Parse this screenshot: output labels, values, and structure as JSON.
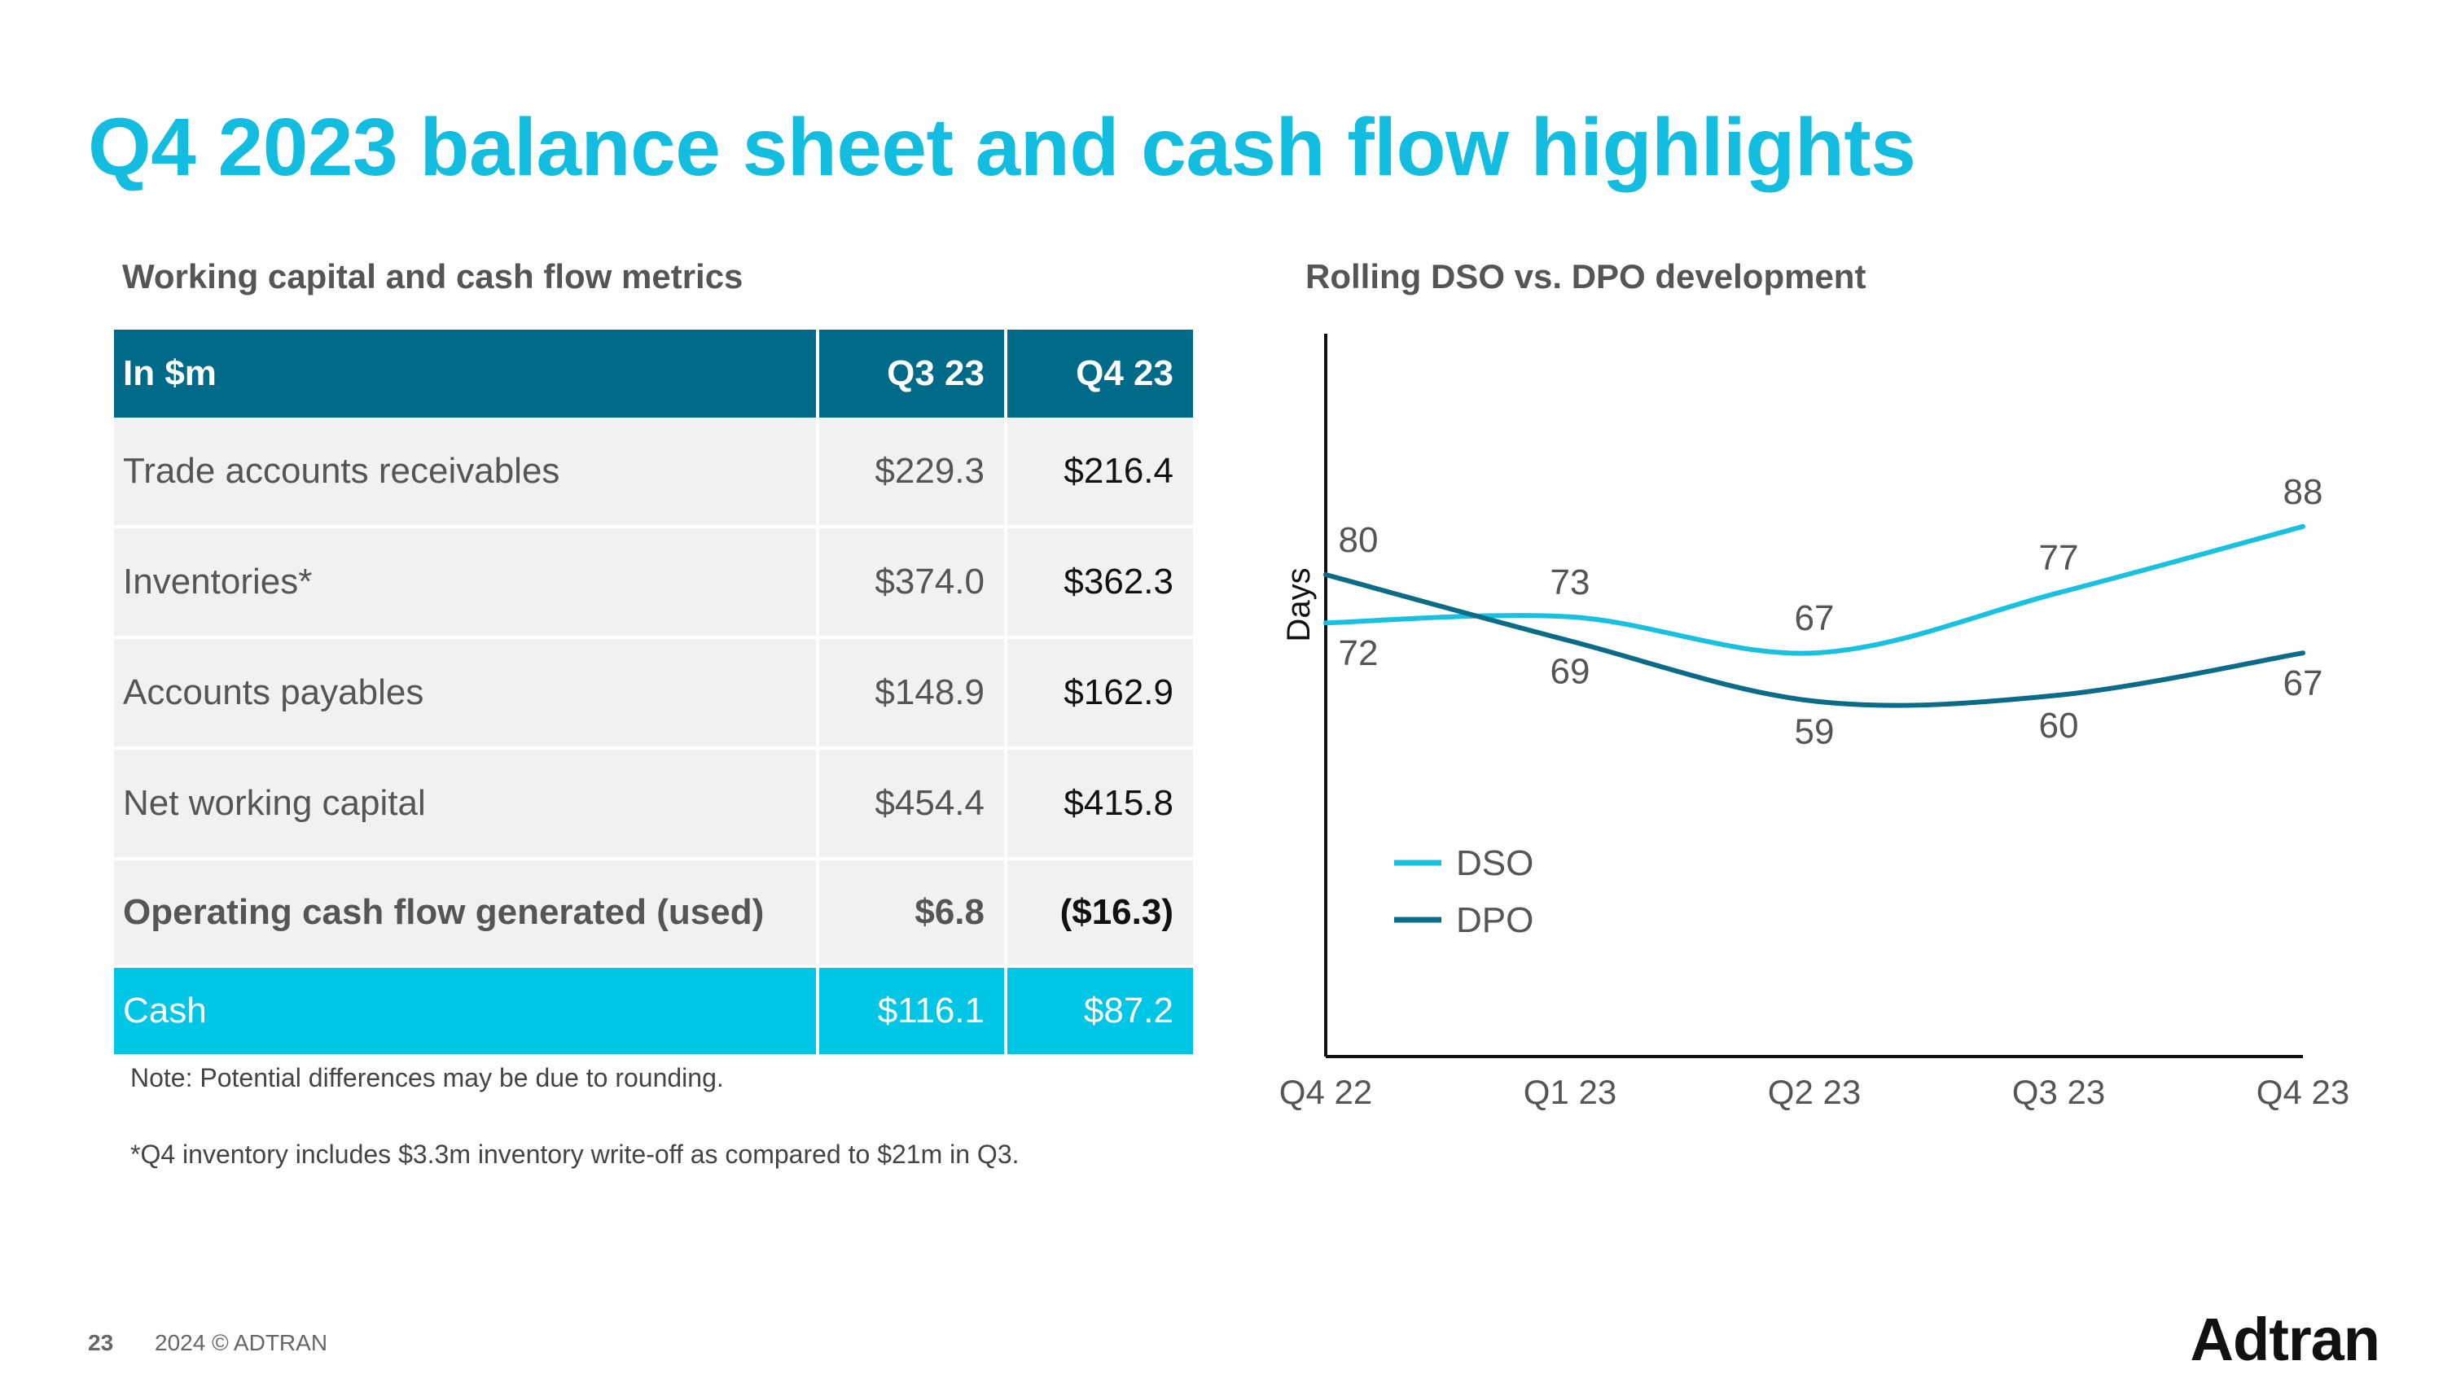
{
  "slide": {
    "title": "Q4 2023 balance sheet and cash flow highlights",
    "page_number": "23",
    "copyright": "2024 © ADTRAN",
    "logo_text": "Adtran"
  },
  "table": {
    "heading": "Working capital and cash flow metrics",
    "columns": [
      "In $m",
      "Q3 23",
      "Q4 23"
    ],
    "rows": [
      {
        "label": "Trade accounts receivables",
        "q3": "$229.3",
        "q4": "$216.4"
      },
      {
        "label": "Inventories*",
        "q3": "$374.0",
        "q4": "$362.3"
      },
      {
        "label": "Accounts payables",
        "q3": "$148.9",
        "q4": "$162.9"
      },
      {
        "label": "Net working capital",
        "q3": "$454.4",
        "q4": "$415.8"
      },
      {
        "label": "Operating cash flow generated (used)",
        "q3": "$6.8",
        "q4": "($16.3)"
      },
      {
        "label": "Cash",
        "q3": "$116.1",
        "q4": "$87.2"
      }
    ],
    "notes": [
      "Note: Potential differences may be due to rounding.",
      "*Q4 inventory includes $3.3m inventory write-off as compared to $21m in Q3."
    ]
  },
  "colors": {
    "title": "#12bde0",
    "header_bg": "#006b88",
    "cash_bg": "#00c6e6",
    "dso_line": "#18c1e0",
    "dpo_line": "#0a6c87"
  },
  "chart_data": {
    "type": "line",
    "title": "Rolling DSO vs. DPO development",
    "ylabel": "Days",
    "xlabel": "",
    "categories": [
      "Q4 22",
      "Q1 23",
      "Q2 23",
      "Q3 23",
      "Q4 23"
    ],
    "series": [
      {
        "name": "DSO",
        "values": [
          72,
          73,
          67,
          77,
          88
        ],
        "color": "#18c1e0"
      },
      {
        "name": "DPO",
        "values": [
          80,
          69,
          59,
          60,
          67
        ],
        "color": "#0a6c87"
      }
    ],
    "data_labels": true,
    "ylim": [
      0,
      120
    ],
    "y_axis_ticks": false,
    "grid": false,
    "legend_position": "lower-left"
  }
}
